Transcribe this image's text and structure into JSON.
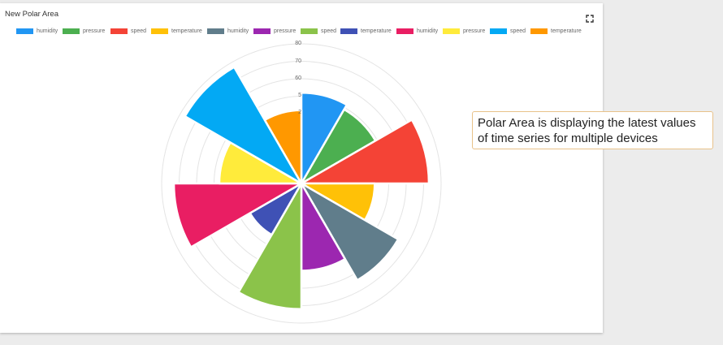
{
  "card": {
    "title": "New Polar Area"
  },
  "icons": {
    "fullscreen": "fullscreen-icon"
  },
  "annotation": {
    "text": "Polar Area is displaying the latest values of time series for multiple devices"
  },
  "chart_data": {
    "type": "polarArea",
    "rlim": [
      0,
      80
    ],
    "ticks": [
      2,
      5,
      60,
      70,
      80
    ],
    "tick_labels": [
      "2",
      "5",
      "60",
      "70",
      "80"
    ],
    "grid": true,
    "legend_position": "top",
    "segments": [
      {
        "label": "humidity",
        "value": 52,
        "color": "#2196f3"
      },
      {
        "label": "pressure",
        "value": 49,
        "color": "#4caf50"
      },
      {
        "label": "speed",
        "value": 73,
        "color": "#f44336"
      },
      {
        "label": "temperature",
        "value": 42,
        "color": "#ffc107"
      },
      {
        "label": "humidity",
        "value": 64,
        "color": "#607d8b"
      },
      {
        "label": "pressure",
        "value": 50,
        "color": "#9c27b0"
      },
      {
        "label": "speed",
        "value": 72,
        "color": "#8bc34a"
      },
      {
        "label": "temperature",
        "value": 34,
        "color": "#3f51b5"
      },
      {
        "label": "humidity",
        "value": 73,
        "color": "#e91e63"
      },
      {
        "label": "pressure",
        "value": 47,
        "color": "#ffeb3b"
      },
      {
        "label": "speed",
        "value": 77,
        "color": "#03a9f4"
      },
      {
        "label": "temperature",
        "value": 42,
        "color": "#ff9800"
      }
    ]
  }
}
